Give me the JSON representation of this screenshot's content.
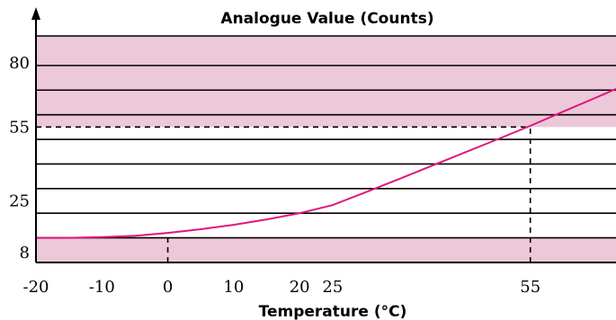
{
  "chart_data": {
    "type": "line",
    "title": "Analogue Value (Counts)",
    "xlabel": "Temperature (°C)",
    "ylabel": "",
    "x_ticks": [
      "-20",
      "-10",
      "0",
      "10",
      "20",
      "25",
      "55"
    ],
    "y_ticks": [
      "8",
      "25",
      "55",
      "80"
    ],
    "xlim": [
      -20,
      68
    ],
    "ylim": [
      0,
      92
    ],
    "shaded_bands": [
      {
        "y_from": 0,
        "y_to": 10,
        "color": "#ecc8d8"
      },
      {
        "y_from": 55,
        "y_to": 92,
        "color": "#ecc8d8"
      }
    ],
    "horizontal_lines": [
      10,
      20,
      30,
      40,
      50,
      60,
      70,
      80,
      92
    ],
    "series": [
      {
        "color": "#e0157e",
        "x": [
          -20,
          -15,
          -10,
          -5,
          0,
          5,
          10,
          15,
          20,
          25,
          30,
          35,
          40,
          45,
          50,
          55,
          60,
          65,
          68
        ],
        "y": [
          10,
          10,
          10.3,
          10.8,
          12,
          13.5,
          15.3,
          17.5,
          20,
          23.3,
          28.5,
          33.8,
          39.2,
          44.6,
          50,
          55.5,
          61.3,
          67,
          70.5
        ]
      }
    ],
    "reference_lines": [
      {
        "type": "hline",
        "y": 55,
        "x_to": 55,
        "style": "dashed"
      },
      {
        "type": "vline",
        "x": 55,
        "y_to": 55,
        "style": "dashed"
      },
      {
        "type": "vline",
        "x": 0,
        "y_to": 12,
        "style": "dashed"
      }
    ],
    "grid": false,
    "legend": "none"
  }
}
